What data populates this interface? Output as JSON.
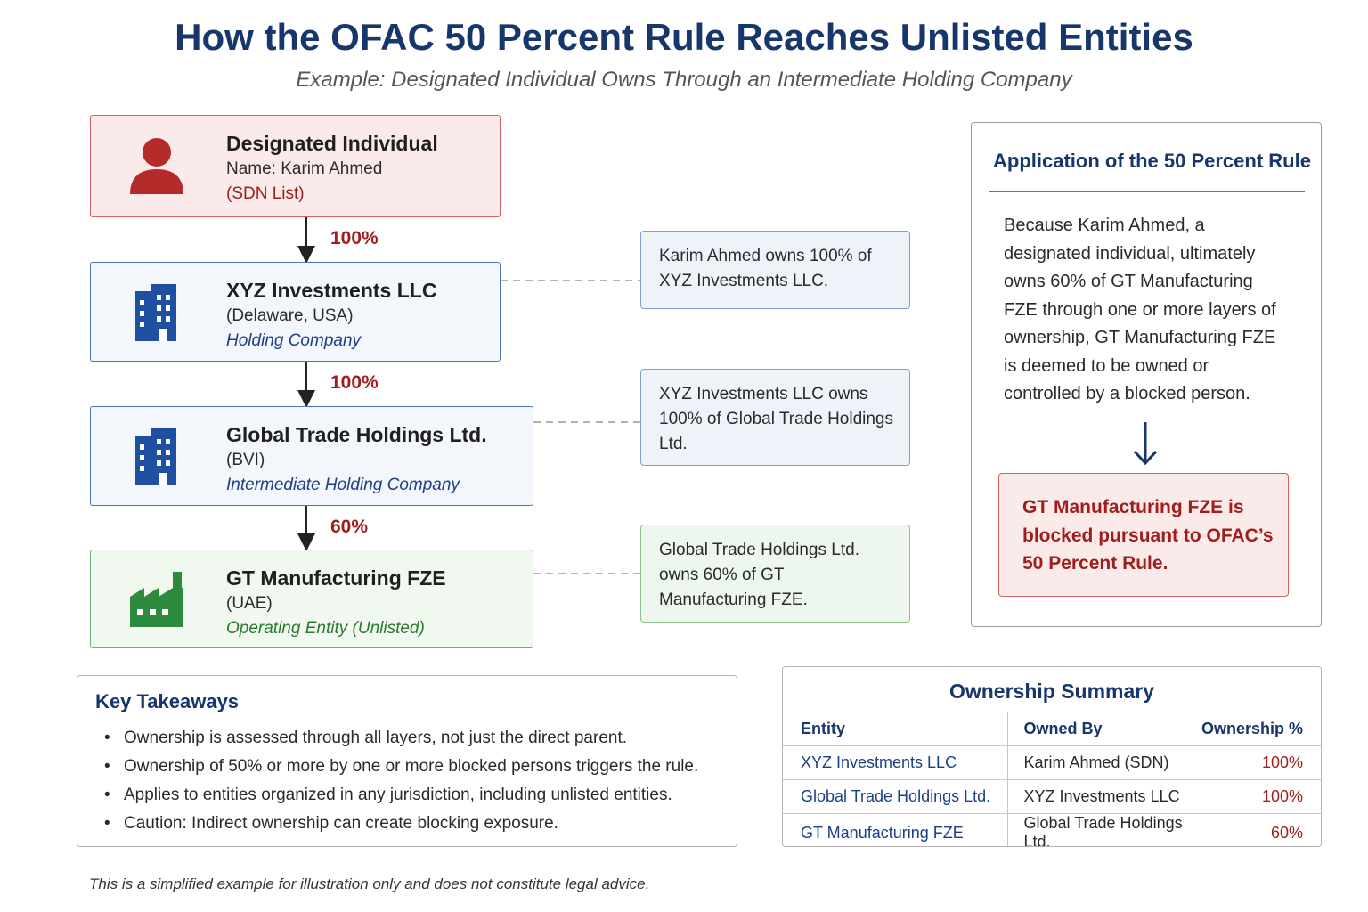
{
  "title": "How the OFAC 50 Percent Rule Reaches Unlisted Entities",
  "subtitle": "Example: Designated Individual Owns Through an Intermediate Holding Company",
  "chain": [
    {
      "name": "Designated Individual",
      "line2": "Name: Karim Ahmed",
      "line3": "(SDN List)",
      "icon": "person-icon",
      "color": "#c0392b"
    },
    {
      "name": "XYZ Investments LLC",
      "line2": "(Delaware, USA)",
      "line3": "Holding Company",
      "icon": "building-icon",
      "color": "#1f4fa0"
    },
    {
      "name": "Global Trade Holdings Ltd.",
      "line2": "(BVI)",
      "line3": "Intermediate Holding Company",
      "icon": "building-icon",
      "color": "#1f4fa0"
    },
    {
      "name": "GT Manufacturing FZE",
      "line2": "(UAE)",
      "line3": "Operating Entity (Unlisted)",
      "icon": "factory-icon",
      "color": "#2e8b3e"
    }
  ],
  "percentages": [
    "100%",
    "100%",
    "60%"
  ],
  "notes": [
    "Karim Ahmed owns 100% of XYZ Investments LLC.",
    "XYZ Investments LLC owns 100% of Global Trade Holdings Ltd.",
    "Global Trade Holdings Ltd. owns 60% of GT Manufacturing FZE."
  ],
  "application": {
    "title": "Application of the 50 Percent Rule",
    "body": "Because Karim Ahmed, a designated individual, ultimately owns 60% of GT Manufacturing FZE through one or more layers of ownership, GT Manufacturing FZE is deemed to be owned or controlled by a blocked person.",
    "result": "GT Manufacturing FZE is blocked pursuant to OFAC’s 50 Percent Rule."
  },
  "takeaways": {
    "title": "Key Takeaways",
    "items": [
      "Ownership is assessed through all layers, not just the direct parent.",
      "Ownership of 50% or more by one or more blocked persons triggers the rule.",
      "Applies to entities organized in any jurisdiction, including unlisted entities.",
      "Caution: Indirect ownership can create blocking exposure."
    ]
  },
  "summary": {
    "title": "Ownership Summary",
    "headers": [
      "Entity",
      "Owned By",
      "Ownership %"
    ],
    "rows": [
      [
        "XYZ Investments LLC",
        "Karim Ahmed (SDN)",
        "100%"
      ],
      [
        "Global Trade Holdings Ltd.",
        "XYZ Investments LLC",
        "100%"
      ],
      [
        "GT Manufacturing FZE",
        "Global Trade Holdings Ltd.",
        "60%"
      ]
    ]
  },
  "disclaimer": "This is a simplified example for illustration only and does not constitute legal advice."
}
